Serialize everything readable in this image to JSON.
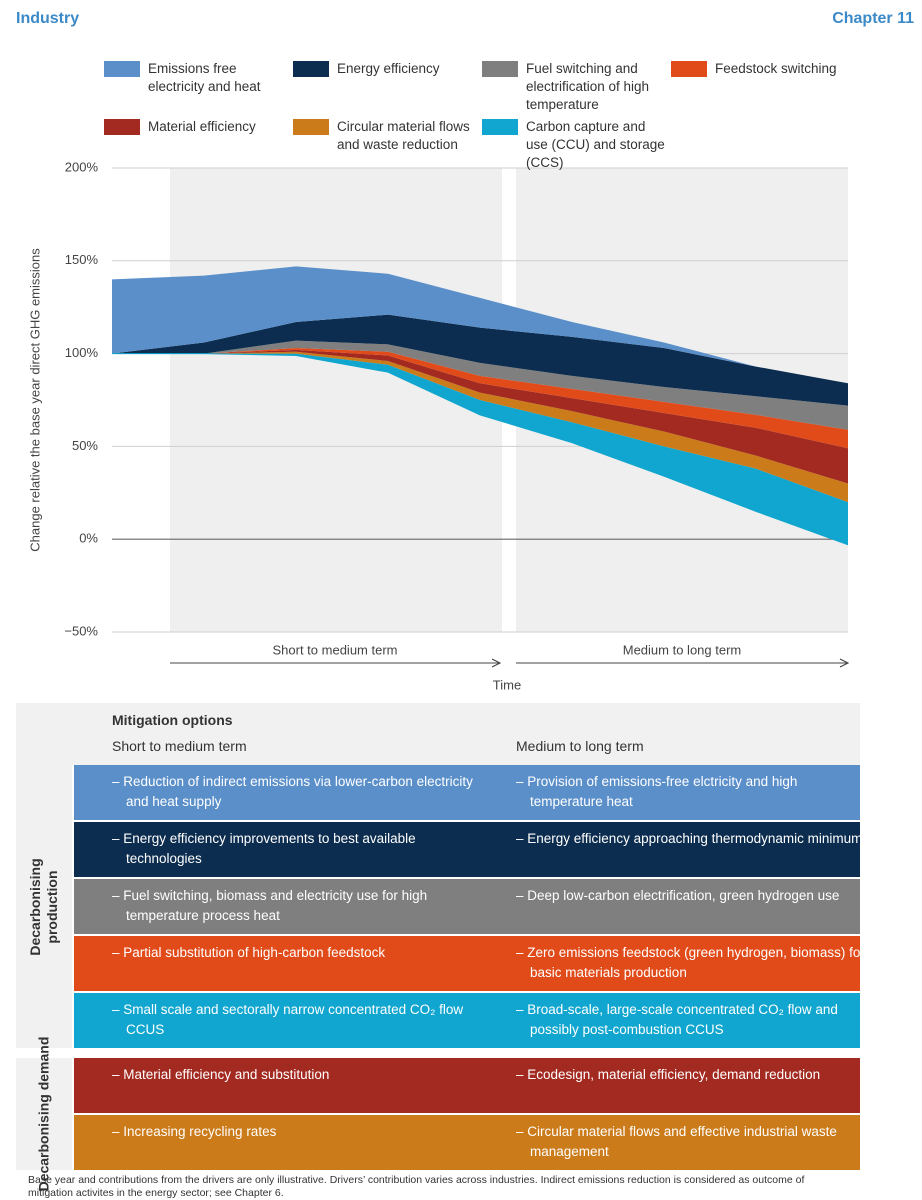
{
  "header": {
    "section": "Industry",
    "chapter": "Chapter 11"
  },
  "chart_data": {
    "type": "stacked-area",
    "y_label": "Change relative the base year direct GHG emissions",
    "x_label": "Time",
    "periods": [
      "Short to medium term",
      "Medium to long term"
    ],
    "categories": [
      null,
      null,
      null,
      null,
      null,
      null,
      null,
      null,
      null
    ],
    "base": [
      100,
      100,
      99,
      90,
      67,
      52,
      34,
      15,
      -3
    ],
    "series": [
      {
        "name": "Emissions free electricity and heat",
        "color": "#5b8fca",
        "values": [
          40,
          36,
          30,
          22,
          16,
          8,
          3,
          0,
          0
        ]
      },
      {
        "name": "Energy efficiency",
        "color": "#0c2d4f",
        "values": [
          0,
          6,
          10,
          16,
          19,
          21,
          21,
          16,
          12
        ]
      },
      {
        "name": "Fuel switching and electrification of high temperature",
        "color": "#7f7f7f",
        "values": [
          0,
          0,
          4,
          4,
          7,
          7,
          8,
          10,
          13
        ]
      },
      {
        "name": "Feedstock switching",
        "color": "#e14b1a",
        "values": [
          0,
          0,
          1,
          2,
          4,
          5,
          6,
          7,
          10
        ]
      },
      {
        "name": "Material efficiency",
        "color": "#a22a20",
        "values": [
          0,
          0,
          1,
          3,
          5,
          7,
          10,
          15,
          19
        ]
      },
      {
        "name": "Circular material flows and waste reduction",
        "color": "#cb7b19",
        "values": [
          0,
          0,
          1,
          2,
          4,
          6,
          8,
          7,
          10
        ]
      },
      {
        "name": "Carbon capture and use (CCU) and storage (CCS)",
        "color": "#10a6cf",
        "values": [
          0,
          0,
          1,
          4,
          8,
          11,
          16,
          23,
          23
        ]
      }
    ],
    "ylim": [
      -50,
      200
    ],
    "yticks": [
      {
        "value": -50,
        "label": "−50%"
      },
      {
        "value": 0,
        "label": "0%"
      },
      {
        "value": 50,
        "label": "50%"
      },
      {
        "value": 100,
        "label": "100%"
      },
      {
        "value": 150,
        "label": "150%"
      },
      {
        "value": 200,
        "label": "200%"
      }
    ],
    "grid": true
  },
  "table": {
    "title": "Mitigation options",
    "columns": [
      "Short to medium term",
      "Medium to long term"
    ],
    "groups": [
      {
        "label": "Decarbonising production",
        "rows": [
          [
            "– Reduction of indirect emissions via lower-carbon electricity and heat supply",
            "– Provision of emissions-free elctricity and high temperature heat"
          ],
          [
            "– Energy efficiency improvements to best available technologies",
            "– Energy efficiency approaching thermodynamic minimums"
          ],
          [
            "– Fuel switching, biomass and electricity use for high temperature process heat",
            "– Deep low-carbon electrification, green hydrogen use"
          ],
          [
            "– Partial substitution of high-carbon feedstock",
            "– Zero emissions feedstock (green hydrogen, biomass) for basic materials production"
          ],
          [
            "– Small scale and sectorally narrow concentrated CO₂ flow CCUS",
            "– Broad-scale, large-scale concentrated CO₂ flow and possibly post-combustion CCUS"
          ]
        ]
      },
      {
        "label": "Decarbonising demand",
        "rows": [
          [
            "– Material efficiency and substitution",
            "– Ecodesign, material efficiency, demand reduction"
          ],
          [
            "– Increasing recycling rates",
            "– Circular material flows and effective industrial waste management"
          ]
        ]
      }
    ]
  },
  "footnote": "Base year and contributions from the drivers are only illustrative. Drivers’ contribution varies across industries. Indirect emissions reduction is considered as outcome of mitigation activites in the energy sector; see Chapter 6."
}
